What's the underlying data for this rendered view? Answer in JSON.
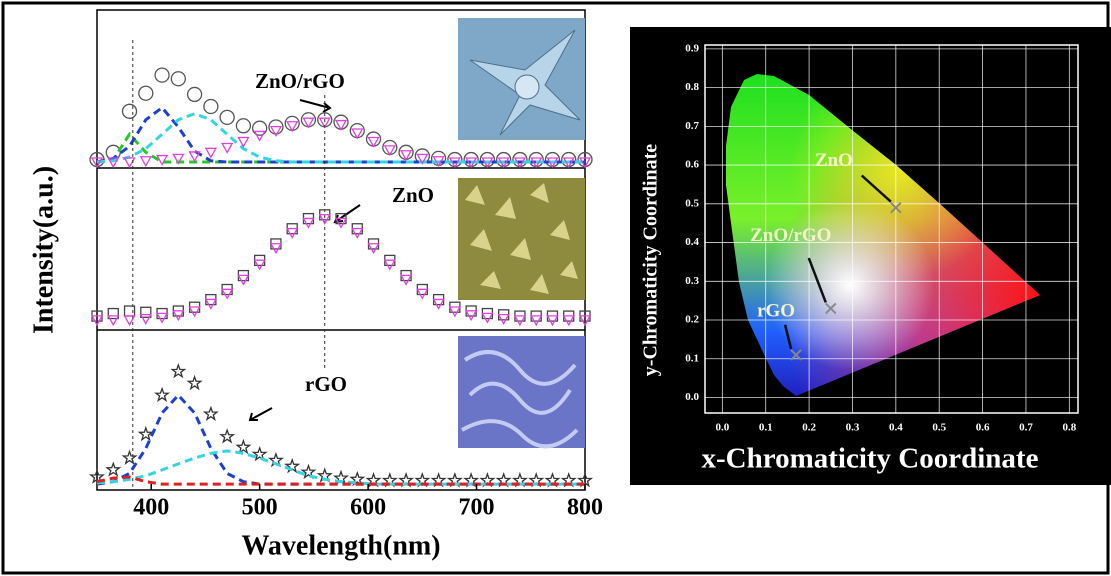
{
  "chart_data": [
    {
      "type": "line",
      "label": "ZnO/rGO",
      "x": [
        350,
        365,
        380,
        395,
        410,
        425,
        440,
        455,
        470,
        485,
        500,
        515,
        530,
        545,
        560,
        575,
        590,
        605,
        620,
        635,
        650,
        665,
        680,
        695,
        710,
        725,
        740,
        755,
        770,
        785,
        800
      ],
      "xlim": [
        350,
        800
      ],
      "ylim": [
        -5,
        126
      ],
      "vlines": [
        383,
        560
      ],
      "series": [
        {
          "style": "markers",
          "marker": "circle",
          "color": "#555555",
          "values": [
            2,
            8,
            42,
            57,
            72,
            69,
            56,
            46,
            37,
            30,
            28,
            29,
            32,
            35,
            35,
            33,
            26,
            19,
            12,
            8,
            5,
            3,
            2,
            2,
            2,
            2,
            2,
            2,
            2,
            2,
            2
          ]
        },
        {
          "style": "dashed",
          "color": "#22cc22",
          "values": [
            0,
            2,
            23,
            8,
            0,
            0,
            0,
            0,
            0,
            0,
            0,
            0,
            0,
            0,
            0,
            0,
            0,
            0,
            0,
            0,
            0,
            0,
            0,
            0,
            0,
            0,
            0,
            0,
            0,
            0,
            0
          ]
        },
        {
          "style": "dashed",
          "color": "#1f3fd0",
          "values": [
            0,
            3,
            13,
            35,
            45,
            29,
            9,
            1,
            0,
            0,
            0,
            0,
            0,
            0,
            0,
            0,
            0,
            0,
            0,
            0,
            0,
            0,
            0,
            0,
            0,
            0,
            0,
            0,
            0,
            0,
            0
          ]
        },
        {
          "style": "dashed",
          "color": "#33d6e0",
          "values": [
            0,
            1,
            4,
            11,
            23,
            35,
            40,
            35,
            23,
            11,
            4,
            1,
            0,
            0,
            0,
            0,
            0,
            0,
            0,
            0,
            0,
            0,
            0,
            0,
            0,
            0,
            0,
            0,
            0,
            0,
            0
          ]
        },
        {
          "style": "markers",
          "marker": "triangle",
          "color": "#e040e0",
          "values": [
            0,
            0,
            0,
            1,
            2,
            3,
            5,
            8,
            12,
            17,
            22,
            26,
            30,
            33,
            33,
            31,
            24,
            17,
            10,
            6,
            3,
            1,
            0,
            0,
            0,
            0,
            0,
            0,
            0,
            0,
            0
          ]
        }
      ]
    },
    {
      "type": "line",
      "label": "ZnO",
      "ylabel": "Intensity(a.u.)",
      "x": [
        350,
        365,
        380,
        395,
        410,
        425,
        440,
        455,
        470,
        485,
        500,
        515,
        530,
        545,
        560,
        575,
        590,
        605,
        620,
        635,
        650,
        665,
        680,
        695,
        710,
        725,
        740,
        755,
        770,
        785,
        800
      ],
      "xlim": [
        350,
        800
      ],
      "ylim": [
        -8,
        120
      ],
      "series": [
        {
          "style": "markers",
          "marker": "square",
          "color": "#444444",
          "values": [
            3,
            5,
            7,
            6,
            5,
            7,
            10,
            16,
            24,
            35,
            47,
            60,
            72,
            80,
            83,
            80,
            72,
            60,
            47,
            35,
            24,
            16,
            10,
            7,
            5,
            4,
            3,
            3,
            3,
            3,
            3
          ]
        },
        {
          "style": "markers",
          "marker": "triangle",
          "color": "#e040e0",
          "values": [
            0,
            0,
            0,
            1,
            2,
            4,
            7,
            13,
            21,
            32,
            44,
            57,
            69,
            77,
            80,
            77,
            69,
            57,
            44,
            32,
            21,
            13,
            7,
            4,
            2,
            1,
            0,
            0,
            0,
            0,
            0
          ]
        }
      ]
    },
    {
      "type": "line",
      "label": "rGO",
      "xlabel": "Wavelength(nm)",
      "x": [
        350,
        365,
        380,
        395,
        410,
        425,
        440,
        455,
        470,
        485,
        500,
        515,
        530,
        545,
        560,
        575,
        590,
        605,
        620,
        635,
        650,
        665,
        680,
        695,
        710,
        725,
        740,
        755,
        770,
        785,
        800
      ],
      "xlim": [
        350,
        800
      ],
      "ylim": [
        -5,
        130
      ],
      "xticks": [
        400,
        500,
        600,
        700,
        800
      ],
      "series": [
        {
          "style": "markers",
          "marker": "star",
          "color": "#333333",
          "values": [
            6,
            12,
            22,
            42,
            75,
            95,
            85,
            59,
            40,
            31,
            25,
            20,
            15,
            10,
            7,
            5,
            4,
            3,
            3,
            3,
            3,
            3,
            3,
            3,
            3,
            3,
            3,
            3,
            3,
            3,
            3
          ]
        },
        {
          "style": "dashed",
          "color": "#1f3fd0",
          "values": [
            0,
            2,
            9,
            30,
            60,
            75,
            60,
            30,
            9,
            2,
            0,
            0,
            0,
            0,
            0,
            0,
            0,
            0,
            0,
            0,
            0,
            0,
            0,
            0,
            0,
            0,
            0,
            0,
            0,
            0,
            0
          ]
        },
        {
          "style": "dashed",
          "color": "#33d6e0",
          "values": [
            1,
            2,
            4,
            7,
            12,
            17,
            22,
            26,
            28,
            26,
            22,
            17,
            12,
            7,
            4,
            2,
            1,
            0,
            0,
            0,
            0,
            0,
            0,
            0,
            0,
            0,
            0,
            0,
            0,
            0,
            0
          ]
        },
        {
          "style": "dashed",
          "color": "#e02020",
          "values": [
            2,
            5,
            6,
            2,
            0,
            0,
            0,
            0,
            0,
            0,
            0,
            0,
            0,
            0,
            0,
            0,
            0,
            0,
            0,
            0,
            0,
            0,
            0,
            0,
            0,
            0,
            0,
            0,
            0,
            0,
            0
          ]
        }
      ]
    },
    {
      "type": "scatter",
      "xlabel": "x-Chromaticity Coordinate",
      "ylabel": "y-Chromaticity Coordinate",
      "xlim": [
        -0.04,
        0.82
      ],
      "ylim": [
        -0.04,
        0.91
      ],
      "grid": true,
      "color": "#888888",
      "xticks": [
        {
          "value": 0,
          "label": "0.0"
        },
        0.1,
        0.2,
        0.3,
        0.4,
        0.5,
        0.6,
        0.7,
        0.8
      ],
      "yticks": [
        {
          "value": 0,
          "label": "0.0"
        },
        0.1,
        0.2,
        0.3,
        0.4,
        0.5,
        0.6,
        0.7,
        0.8,
        0.9
      ],
      "x": [
        0.4,
        0.25,
        0.17
      ],
      "values": [
        0.49,
        0.23,
        0.11
      ],
      "labels": [
        "ZnO",
        "ZnO/rGO",
        "rGO"
      ]
    }
  ]
}
